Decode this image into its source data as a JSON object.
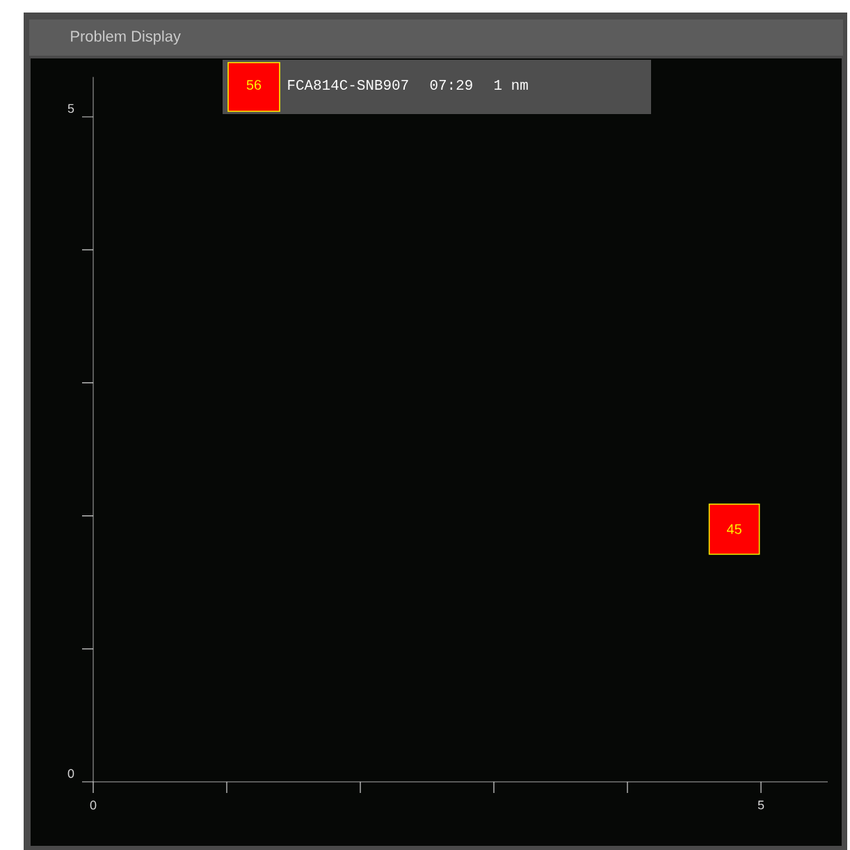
{
  "chart_data": {
    "type": "scatter",
    "title": "Problem Display",
    "annotations": [
      "56",
      "FCA814C-SNB907",
      "07:29",
      "1 nm",
      {
        "text": "45",
        "x": 4.8,
        "y": 1.9
      }
    ],
    "x": [
      4.8
    ],
    "values": [
      1.9
    ],
    "color": "#ff0000",
    "marker": "square",
    "xlim": [
      0,
      5.5
    ],
    "ylim": [
      0,
      5.3
    ],
    "xticks": [
      0,
      {
        "value": 1,
        "label": null
      },
      {
        "value": 2,
        "label": null
      },
      {
        "value": 3,
        "label": null
      },
      {
        "value": 4,
        "label": null
      },
      5
    ],
    "yticks": [
      0,
      {
        "value": 1,
        "label": null
      },
      {
        "value": 2,
        "label": null
      },
      {
        "value": 3,
        "label": null
      },
      {
        "value": 4,
        "label": null
      },
      5
    ],
    "grid": false
  }
}
